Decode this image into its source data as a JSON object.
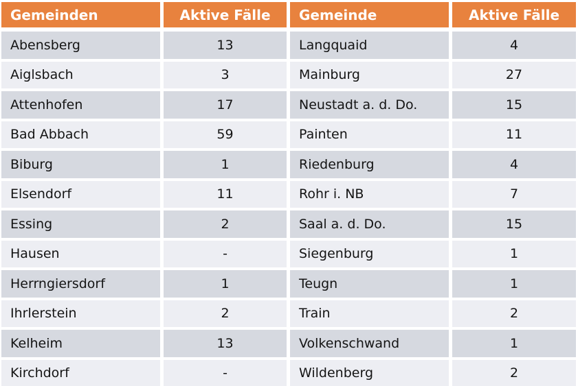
{
  "colors": {
    "header_bg": "#e8823e",
    "header_text": "#ffffff",
    "row_dark": "#d6d9e0",
    "row_light": "#edeef3",
    "body_text": "#141414"
  },
  "chart_data": {
    "type": "table",
    "layout": "two side-by-side tables, orange header row, alternating gray banded rows",
    "tables": [
      {
        "columns": [
          "Gemeinden",
          "Aktive Fälle"
        ],
        "rows": [
          [
            "Abensberg",
            "13"
          ],
          [
            "Aiglsbach",
            "3"
          ],
          [
            "Attenhofen",
            "17"
          ],
          [
            "Bad Abbach",
            "59"
          ],
          [
            "Biburg",
            "1"
          ],
          [
            "Elsendorf",
            "11"
          ],
          [
            "Essing",
            "2"
          ],
          [
            "Hausen",
            "-"
          ],
          [
            "Herrngiersdorf",
            "1"
          ],
          [
            "Ihrlerstein",
            "2"
          ],
          [
            "Kelheim",
            "13"
          ],
          [
            "Kirchdorf",
            "-"
          ]
        ]
      },
      {
        "columns": [
          "Gemeinde",
          "Aktive Fälle"
        ],
        "rows": [
          [
            "Langquaid",
            "4"
          ],
          [
            "Mainburg",
            "27"
          ],
          [
            "Neustadt a. d. Do.",
            "15"
          ],
          [
            "Painten",
            "11"
          ],
          [
            "Riedenburg",
            "4"
          ],
          [
            "Rohr i. NB",
            "7"
          ],
          [
            "Saal a. d. Do.",
            "15"
          ],
          [
            "Siegenburg",
            "1"
          ],
          [
            "Teugn",
            "1"
          ],
          [
            "Train",
            "2"
          ],
          [
            "Volkenschwand",
            "1"
          ],
          [
            "Wildenberg",
            "2"
          ]
        ]
      }
    ]
  }
}
